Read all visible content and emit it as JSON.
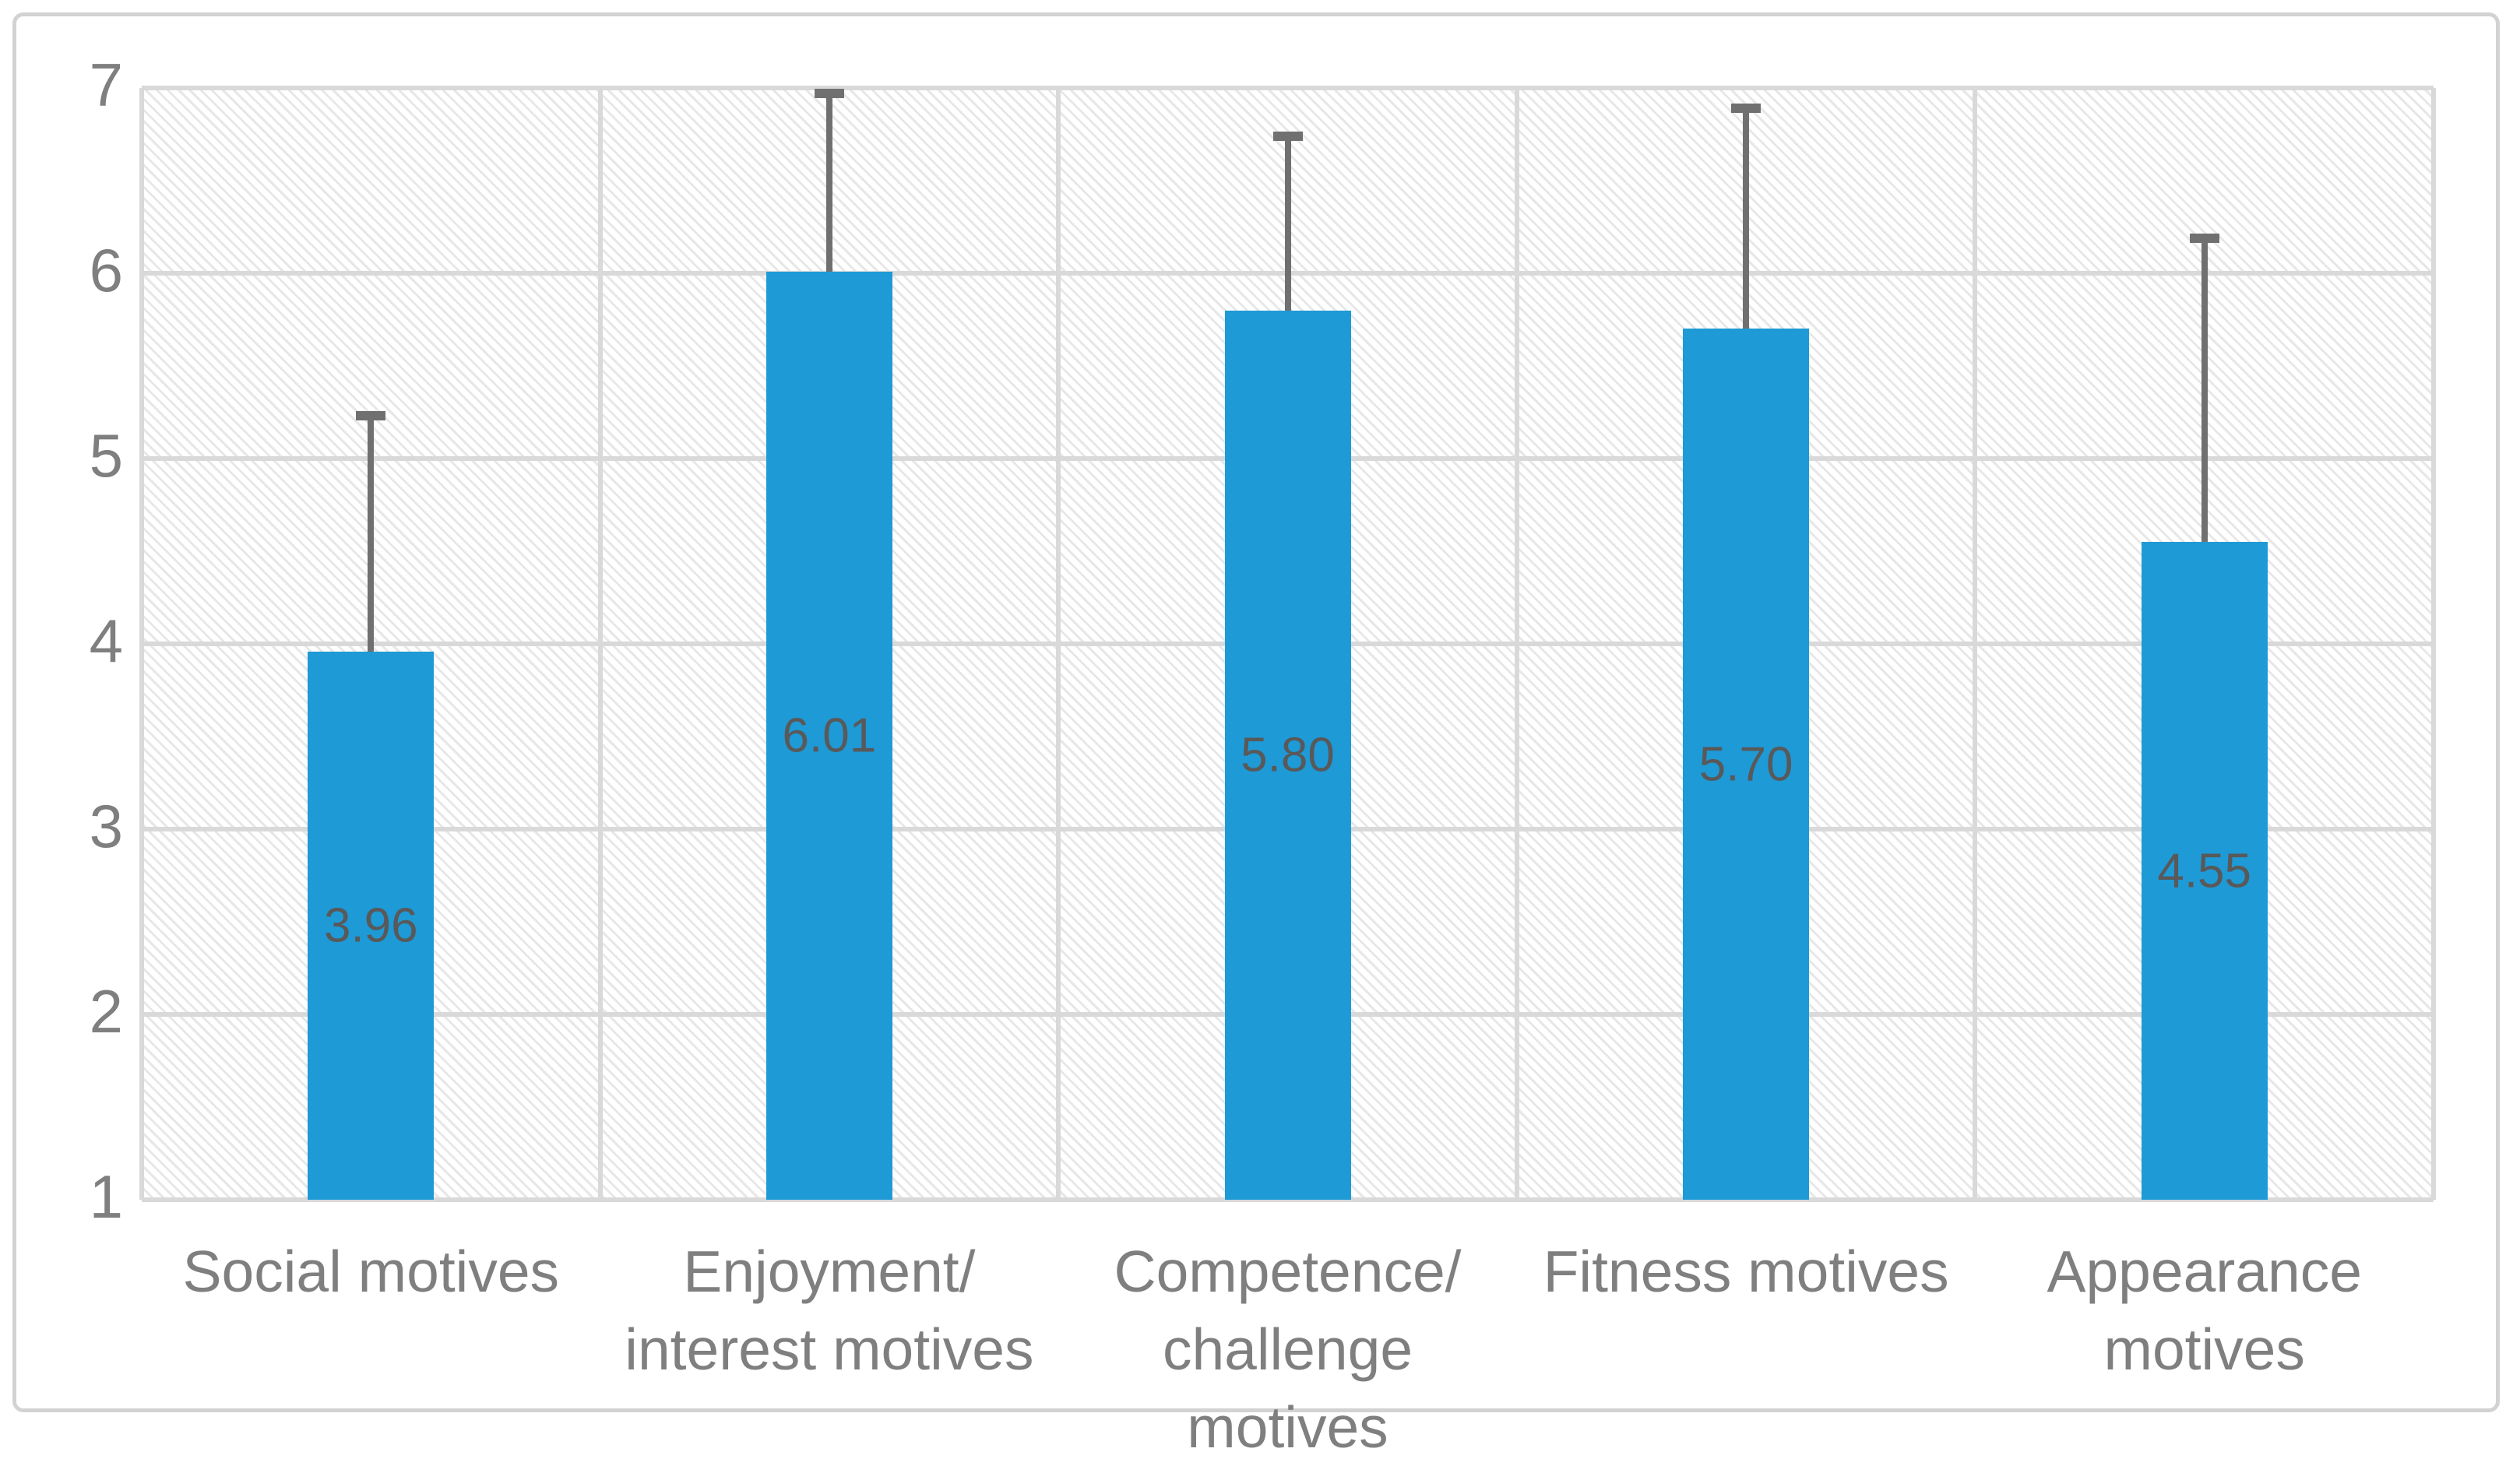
{
  "figure": {
    "background": "#ffffff",
    "border_color": "#d2d2d2"
  },
  "chart_data": {
    "type": "bar",
    "title": "",
    "legend": "none",
    "grid": "major horizontal and vertical, light gray, hatched plot fill",
    "categories": [
      "Social motives",
      "Enjoyment/ interest motives",
      "Competence/ challenge motives",
      "Fitness motives",
      "Appearance motives"
    ],
    "category_lines": [
      [
        "Social motives"
      ],
      [
        "Enjoyment/",
        "interest motives"
      ],
      [
        "Competence/",
        "challenge motives"
      ],
      [
        "Fitness motives"
      ],
      [
        "Appearance",
        "motives"
      ]
    ],
    "values": [
      3.96,
      6.01,
      5.8,
      5.7,
      4.55
    ],
    "data_labels": [
      "3.96",
      "6.01",
      "5.80",
      "5.70",
      "4.55"
    ],
    "error_bar_top": [
      5.23,
      6.97,
      6.74,
      6.89,
      6.19
    ],
    "xlabel": "",
    "ylabel": "",
    "ylim": [
      1,
      7
    ],
    "yticks": [
      7,
      6,
      5,
      4,
      3,
      2,
      1
    ],
    "colors": {
      "bar_fill": "#1e9ad6",
      "gridline": "#d9d9d9",
      "error_bar": "#707070",
      "data_label": "#595959",
      "axis_text": "#7f7f7f"
    }
  }
}
